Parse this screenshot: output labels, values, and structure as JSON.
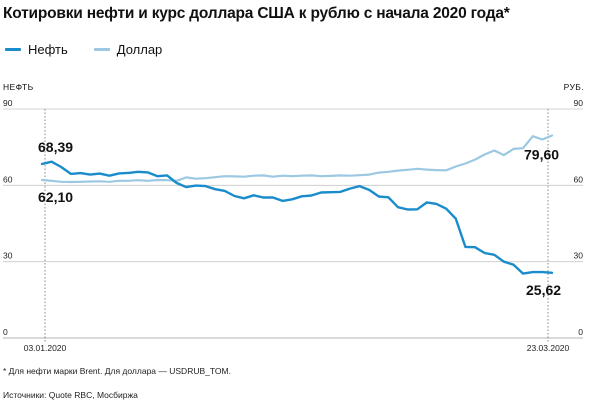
{
  "chart_data": {
    "type": "line",
    "title": "Котировки нефти и курс доллара США к рублю с начала 2020 года*",
    "y_left_label": "НЕФТЬ",
    "y_right_label": "РУБ.",
    "ylim": [
      0,
      90
    ],
    "yticks": [
      0,
      30,
      60,
      90
    ],
    "x_start_label": "03.01.2020",
    "x_end_label": "23.03.2020",
    "grid": true,
    "legend": "top-left",
    "series": [
      {
        "name": "Нефть",
        "color": "#1a8ccb",
        "values": [
          68.39,
          69.3,
          67.2,
          64.5,
          64.8,
          64.2,
          64.6,
          63.8,
          64.7,
          64.9,
          65.3,
          65.1,
          63.6,
          63.9,
          60.9,
          59.3,
          59.9,
          59.7,
          58.5,
          57.8,
          55.8,
          54.9,
          56.1,
          55.2,
          55.2,
          53.9,
          54.5,
          55.7,
          56.0,
          57.2,
          57.3,
          57.4,
          58.7,
          59.7,
          58.2,
          55.6,
          55.3,
          51.4,
          50.5,
          50.6,
          53.3,
          52.7,
          50.8,
          46.9,
          35.8,
          35.7,
          33.4,
          32.7,
          30.0,
          28.8,
          25.3,
          25.9,
          25.9,
          25.62
        ],
        "annotations": [
          {
            "index": 0,
            "label": "68,39"
          },
          {
            "index": 53,
            "label": "25,62"
          }
        ]
      },
      {
        "name": "Доллар",
        "color": "#9cc8e2",
        "values": [
          62.1,
          61.8,
          61.4,
          61.3,
          61.4,
          61.5,
          61.6,
          61.4,
          61.8,
          61.8,
          62.0,
          61.8,
          62.1,
          62.0,
          61.8,
          63.1,
          62.6,
          62.8,
          63.2,
          63.6,
          63.5,
          63.4,
          63.8,
          63.9,
          63.4,
          63.8,
          63.6,
          63.8,
          63.9,
          63.6,
          63.7,
          63.9,
          63.8,
          64.0,
          64.2,
          65.0,
          65.3,
          65.8,
          66.1,
          66.5,
          66.2,
          66.0,
          65.9,
          67.4,
          68.6,
          70.1,
          72.1,
          73.7,
          71.9,
          74.3,
          74.6,
          79.3,
          78.0,
          79.6
        ],
        "annotations": [
          {
            "index": 0,
            "label": "62,10"
          },
          {
            "index": 53,
            "label": "79,60"
          }
        ]
      }
    ]
  },
  "note": "* Для нефти марки Brent. Для доллара — USDRUB_TOM.",
  "source": "Источники: Quote RBC, Мосбиржа"
}
